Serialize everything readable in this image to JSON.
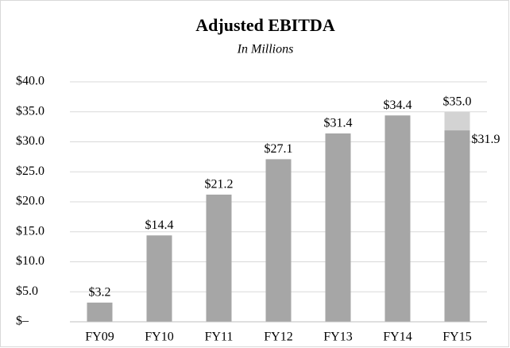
{
  "chart_data": {
    "type": "bar",
    "title": "Adjusted EBITDA",
    "subtitle": "In Millions",
    "categories": [
      "FY09",
      "FY10",
      "FY11",
      "FY12",
      "FY13",
      "FY14",
      "FY15"
    ],
    "series": [
      {
        "color": "#d3d3d3",
        "values": [
          null,
          null,
          null,
          null,
          null,
          null,
          35.0
        ],
        "value_labels": [
          null,
          null,
          null,
          null,
          null,
          null,
          "$35.0"
        ]
      },
      {
        "color": "#a6a6a6",
        "values": [
          3.2,
          14.4,
          21.2,
          27.1,
          31.4,
          34.4,
          31.9
        ],
        "value_labels": [
          "$3.2",
          "$14.4",
          "$21.2",
          "$27.1",
          "$31.4",
          "$34.4",
          "$31.9"
        ]
      }
    ],
    "ylim": [
      0,
      40
    ],
    "yticks": [
      {
        "value": 0,
        "label": "$–"
      },
      {
        "value": 5,
        "label": "$5.0"
      },
      {
        "value": 10,
        "label": "$10.0"
      },
      {
        "value": 15,
        "label": "$15.0"
      },
      {
        "value": 20,
        "label": "$20.0"
      },
      {
        "value": 25,
        "label": "$25.0"
      },
      {
        "value": 30,
        "label": "$30.0"
      },
      {
        "value": 35,
        "label": "$35.0"
      },
      {
        "value": 40,
        "label": "$40.0"
      }
    ],
    "grid": true
  }
}
